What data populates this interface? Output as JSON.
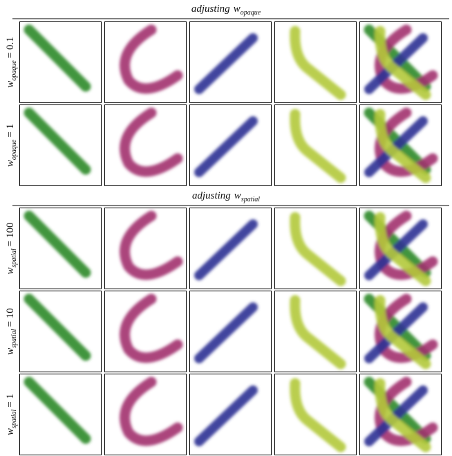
{
  "sections": [
    {
      "title": "adjusting",
      "variable": "w",
      "subscript": "opaque",
      "rows": [
        {
          "variable": "w",
          "subscript": "opaque",
          "setting": "= 0.1"
        },
        {
          "variable": "w",
          "subscript": "opaque",
          "setting": "= 1"
        }
      ]
    },
    {
      "title": "adjusting",
      "variable": "w",
      "subscript": "spatial",
      "rows": [
        {
          "variable": "w",
          "subscript": "spatial",
          "setting": "= 100"
        },
        {
          "variable": "w",
          "subscript": "spatial",
          "setting": "= 10"
        },
        {
          "variable": "w",
          "subscript": "spatial",
          "setting": "= 1"
        }
      ]
    }
  ]
}
